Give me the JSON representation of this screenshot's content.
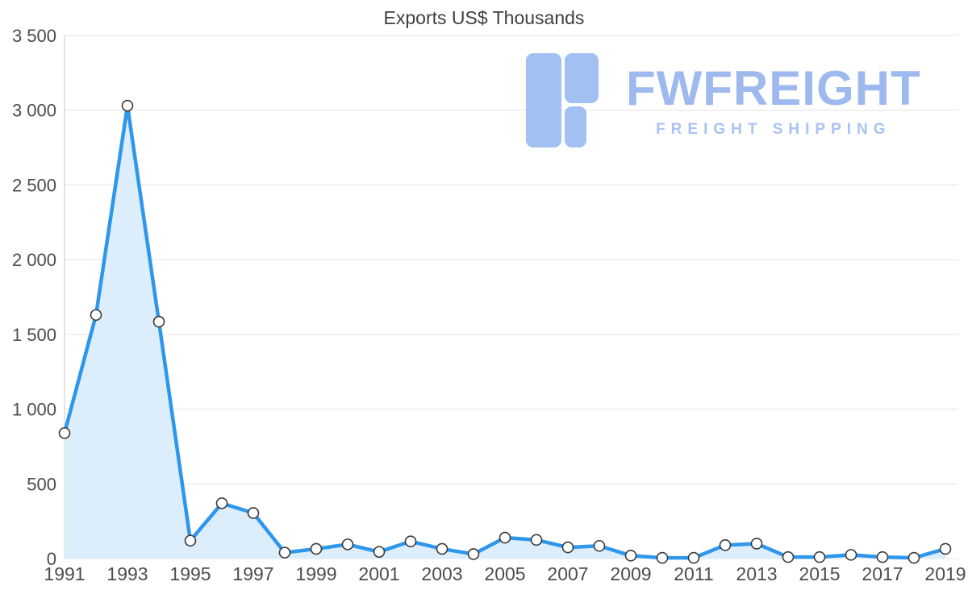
{
  "title": "Exports US$ Thousands",
  "logo": {
    "name": "FWFREIGHT",
    "tagline": "FREIGHT SHIPPING"
  },
  "chart_data": {
    "type": "area",
    "title": "Exports US$ Thousands",
    "xlabel": "",
    "ylabel": "US$ Thousands",
    "ylim": [
      0,
      3500
    ],
    "grid": true,
    "legend": "none",
    "x": [
      1991,
      1992,
      1993,
      1994,
      1995,
      1996,
      1997,
      1998,
      1999,
      2000,
      2001,
      2002,
      2003,
      2004,
      2005,
      2006,
      2007,
      2008,
      2009,
      2010,
      2011,
      2012,
      2013,
      2014,
      2015,
      2016,
      2017,
      2018,
      2019
    ],
    "values": [
      840,
      1630,
      3030,
      1585,
      120,
      370,
      305,
      40,
      65,
      95,
      45,
      115,
      65,
      30,
      140,
      125,
      75,
      85,
      20,
      5,
      5,
      90,
      100,
      10,
      10,
      25,
      10,
      5,
      65
    ],
    "ytick_values": [
      0,
      500,
      1000,
      1500,
      2000,
      2500,
      3000,
      3500
    ],
    "ytick_labels": [
      "0",
      "500",
      "1 000",
      "1 500",
      "2 000",
      "2 500",
      "3 000",
      "3 500"
    ],
    "xtick_labels": [
      1991,
      1993,
      1995,
      1997,
      1999,
      2001,
      2003,
      2005,
      2007,
      2009,
      2011,
      2013,
      2015,
      2017,
      2019
    ],
    "colors": {
      "line": "#2e97ec",
      "area_fill": "#dcedfc",
      "marker_fill": "#ffffff",
      "marker_stroke": "#3a3a3a",
      "gridline": "#e3e3e3",
      "axis_line": "#c9c9c9",
      "axis_text": "#4d4d4d",
      "title_text": "#3f3f3f",
      "logo_glyph": "#a3c0f3",
      "logo_text": "#9db9ee",
      "logo_tagline": "#a9c3f2"
    }
  }
}
